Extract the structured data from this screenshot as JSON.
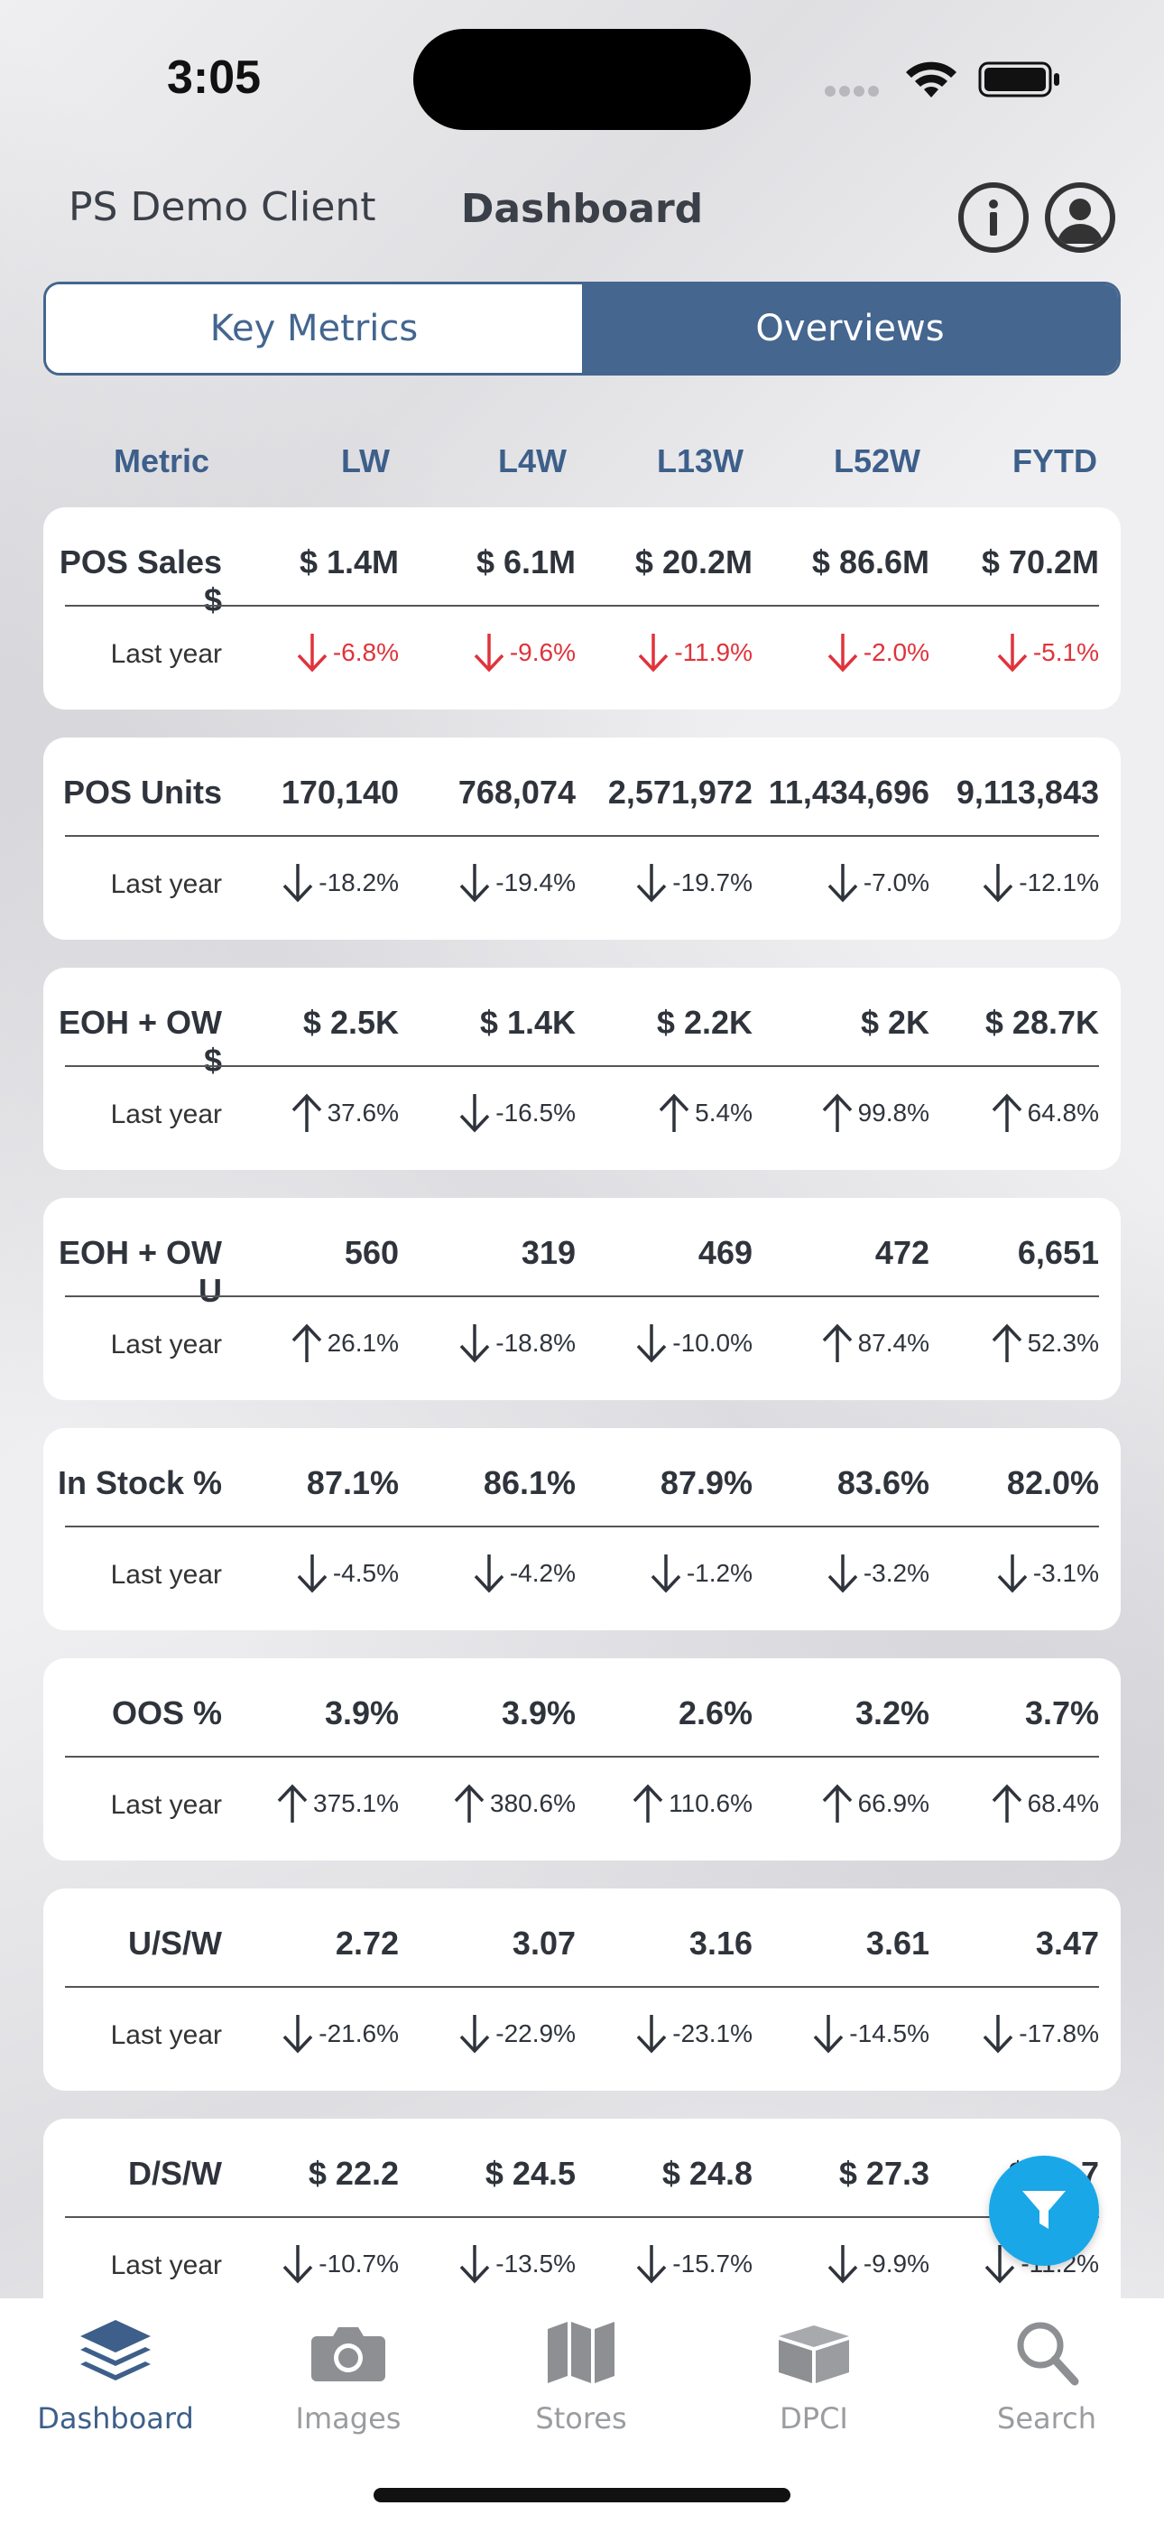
{
  "status_bar": {
    "time": "3:05"
  },
  "header": {
    "client": "PS Demo Client",
    "title": "Dashboard"
  },
  "tabs": [
    {
      "label": "Key Metrics",
      "active": false
    },
    {
      "label": "Overviews",
      "active": true
    }
  ],
  "columns": [
    "Metric",
    "LW",
    "L4W",
    "L13W",
    "L52W",
    "FYTD"
  ],
  "last_year_label": "Last year",
  "metrics": [
    {
      "name": "POS Sales $",
      "values": [
        "$ 1.4M",
        "$ 6.1M",
        "$ 20.2M",
        "$ 86.6M",
        "$ 70.2M"
      ],
      "changes": [
        {
          "text": "-6.8%",
          "dir": "down",
          "color": "#e0333b"
        },
        {
          "text": "-9.6%",
          "dir": "down",
          "color": "#e0333b"
        },
        {
          "text": "-11.9%",
          "dir": "down",
          "color": "#e0333b"
        },
        {
          "text": "-2.0%",
          "dir": "down",
          "color": "#e0333b"
        },
        {
          "text": "-5.1%",
          "dir": "down",
          "color": "#e0333b"
        }
      ]
    },
    {
      "name": "POS Units",
      "values": [
        "170,140",
        "768,074",
        "2,571,972",
        "11,434,696",
        "9,113,843"
      ],
      "changes": [
        {
          "text": "-18.2%",
          "dir": "down"
        },
        {
          "text": "-19.4%",
          "dir": "down"
        },
        {
          "text": "-19.7%",
          "dir": "down"
        },
        {
          "text": "-7.0%",
          "dir": "down"
        },
        {
          "text": "-12.1%",
          "dir": "down"
        }
      ]
    },
    {
      "name": "EOH + OW $",
      "values": [
        "$ 2.5K",
        "$ 1.4K",
        "$ 2.2K",
        "$ 2K",
        "$ 28.7K"
      ],
      "changes": [
        {
          "text": "37.6%",
          "dir": "up"
        },
        {
          "text": "-16.5%",
          "dir": "down"
        },
        {
          "text": "5.4%",
          "dir": "up"
        },
        {
          "text": "99.8%",
          "dir": "up"
        },
        {
          "text": "64.8%",
          "dir": "up"
        }
      ]
    },
    {
      "name": "EOH + OW U",
      "values": [
        "560",
        "319",
        "469",
        "472",
        "6,651"
      ],
      "changes": [
        {
          "text": "26.1%",
          "dir": "up"
        },
        {
          "text": "-18.8%",
          "dir": "down"
        },
        {
          "text": "-10.0%",
          "dir": "down"
        },
        {
          "text": "87.4%",
          "dir": "up"
        },
        {
          "text": "52.3%",
          "dir": "up"
        }
      ]
    },
    {
      "name": "In Stock %",
      "values": [
        "87.1%",
        "86.1%",
        "87.9%",
        "83.6%",
        "82.0%"
      ],
      "changes": [
        {
          "text": "-4.5%",
          "dir": "down"
        },
        {
          "text": "-4.2%",
          "dir": "down"
        },
        {
          "text": "-1.2%",
          "dir": "down"
        },
        {
          "text": "-3.2%",
          "dir": "down"
        },
        {
          "text": "-3.1%",
          "dir": "down"
        }
      ]
    },
    {
      "name": "OOS %",
      "values": [
        "3.9%",
        "3.9%",
        "2.6%",
        "3.2%",
        "3.7%"
      ],
      "changes": [
        {
          "text": "375.1%",
          "dir": "up"
        },
        {
          "text": "380.6%",
          "dir": "up"
        },
        {
          "text": "110.6%",
          "dir": "up"
        },
        {
          "text": "66.9%",
          "dir": "up"
        },
        {
          "text": "68.4%",
          "dir": "up"
        }
      ]
    },
    {
      "name": "U/S/W",
      "values": [
        "2.72",
        "3.07",
        "3.16",
        "3.61",
        "3.47"
      ],
      "changes": [
        {
          "text": "-21.6%",
          "dir": "down"
        },
        {
          "text": "-22.9%",
          "dir": "down"
        },
        {
          "text": "-23.1%",
          "dir": "down"
        },
        {
          "text": "-14.5%",
          "dir": "down"
        },
        {
          "text": "-17.8%",
          "dir": "down"
        }
      ]
    },
    {
      "name": "D/S/W",
      "values": [
        "$ 22.2",
        "$ 24.5",
        "$ 24.8",
        "$ 27.3",
        "$ 25.7"
      ],
      "changes": [
        {
          "text": "-10.7%",
          "dir": "down"
        },
        {
          "text": "-13.5%",
          "dir": "down"
        },
        {
          "text": "-15.7%",
          "dir": "down"
        },
        {
          "text": "-9.9%",
          "dir": "down"
        },
        {
          "text": "-11.2%",
          "dir": "down"
        }
      ]
    }
  ],
  "bottom_nav": [
    {
      "label": "Dashboard",
      "icon": "layers-icon",
      "active": true
    },
    {
      "label": "Images",
      "icon": "camera-icon",
      "active": false
    },
    {
      "label": "Stores",
      "icon": "map-icon",
      "active": false
    },
    {
      "label": "DPCI",
      "icon": "box-icon",
      "active": false
    },
    {
      "label": "Search",
      "icon": "search-icon",
      "active": false
    }
  ],
  "colors": {
    "accent": "#44668f",
    "fab": "#1aa7e8",
    "negative": "#e0333b"
  }
}
